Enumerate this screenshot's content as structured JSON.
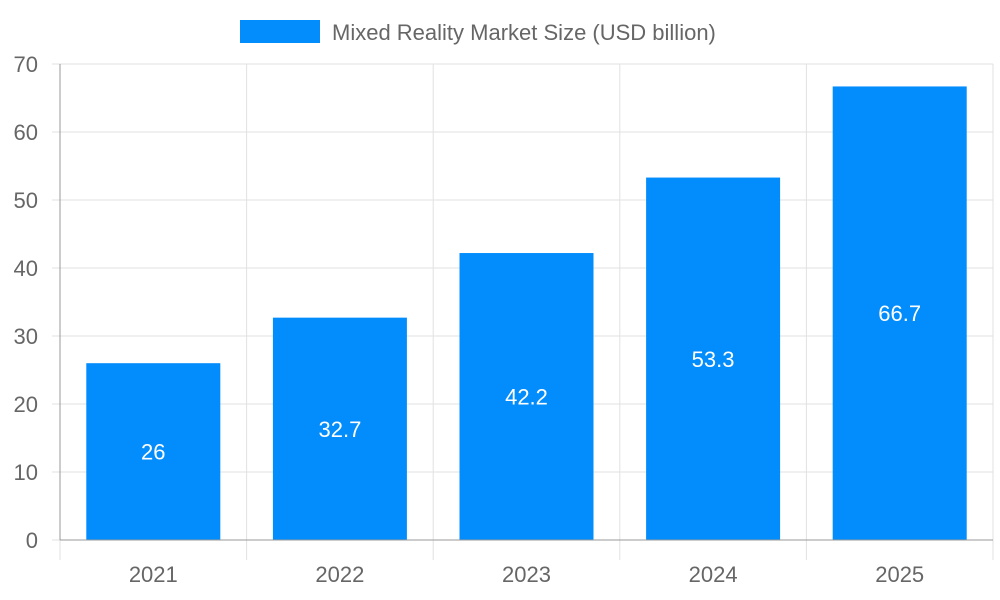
{
  "chart_data": {
    "type": "bar",
    "categories": [
      "2021",
      "2022",
      "2023",
      "2024",
      "2025"
    ],
    "series": [
      {
        "name": "Mixed Reality Market Size (USD billion)",
        "values": [
          26,
          32.7,
          42.2,
          53.3,
          66.7
        ],
        "color": "#038cfc"
      }
    ],
    "data_labels": [
      "26",
      "32.7",
      "42.2",
      "53.3",
      "66.7"
    ],
    "ylim": [
      0,
      70
    ],
    "yticks": [
      0,
      10,
      20,
      30,
      40,
      50,
      60,
      70
    ],
    "grid": true,
    "legend_position": "top",
    "colors": {
      "text": "#666666",
      "grid": "#e1e1e1",
      "axis": "#999999",
      "label": "#ffffff"
    }
  }
}
